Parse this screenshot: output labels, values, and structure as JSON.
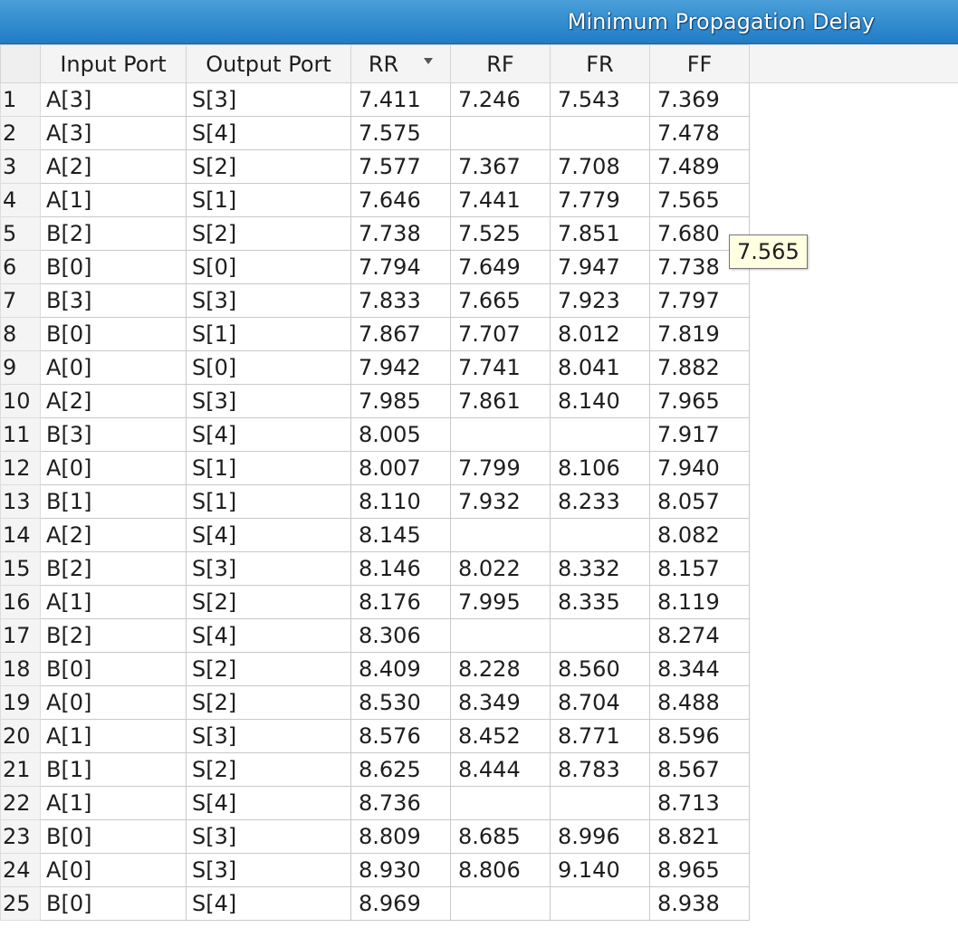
{
  "window": {
    "title": "Minimum Propagation Delay"
  },
  "table": {
    "columns": [
      "",
      "Input Port",
      "Output Port",
      "RR",
      "RF",
      "FR",
      "FF"
    ],
    "sorted_column": "RR",
    "rows": [
      [
        "1",
        "A[3]",
        "S[3]",
        "7.411",
        "7.246",
        "7.543",
        "7.369"
      ],
      [
        "2",
        "A[3]",
        "S[4]",
        "7.575",
        "",
        "",
        "7.478"
      ],
      [
        "3",
        "A[2]",
        "S[2]",
        "7.577",
        "7.367",
        "7.708",
        "7.489"
      ],
      [
        "4",
        "A[1]",
        "S[1]",
        "7.646",
        "7.441",
        "7.779",
        "7.565"
      ],
      [
        "5",
        "B[2]",
        "S[2]",
        "7.738",
        "7.525",
        "7.851",
        "7.680"
      ],
      [
        "6",
        "B[0]",
        "S[0]",
        "7.794",
        "7.649",
        "7.947",
        "7.738"
      ],
      [
        "7",
        "B[3]",
        "S[3]",
        "7.833",
        "7.665",
        "7.923",
        "7.797"
      ],
      [
        "8",
        "B[0]",
        "S[1]",
        "7.867",
        "7.707",
        "8.012",
        "7.819"
      ],
      [
        "9",
        "A[0]",
        "S[0]",
        "7.942",
        "7.741",
        "8.041",
        "7.882"
      ],
      [
        "10",
        "A[2]",
        "S[3]",
        "7.985",
        "7.861",
        "8.140",
        "7.965"
      ],
      [
        "11",
        "B[3]",
        "S[4]",
        "8.005",
        "",
        "",
        "7.917"
      ],
      [
        "12",
        "A[0]",
        "S[1]",
        "8.007",
        "7.799",
        "8.106",
        "7.940"
      ],
      [
        "13",
        "B[1]",
        "S[1]",
        "8.110",
        "7.932",
        "8.233",
        "8.057"
      ],
      [
        "14",
        "A[2]",
        "S[4]",
        "8.145",
        "",
        "",
        "8.082"
      ],
      [
        "15",
        "B[2]",
        "S[3]",
        "8.146",
        "8.022",
        "8.332",
        "8.157"
      ],
      [
        "16",
        "A[1]",
        "S[2]",
        "8.176",
        "7.995",
        "8.335",
        "8.119"
      ],
      [
        "17",
        "B[2]",
        "S[4]",
        "8.306",
        "",
        "",
        "8.274"
      ],
      [
        "18",
        "B[0]",
        "S[2]",
        "8.409",
        "8.228",
        "8.560",
        "8.344"
      ],
      [
        "19",
        "A[0]",
        "S[2]",
        "8.530",
        "8.349",
        "8.704",
        "8.488"
      ],
      [
        "20",
        "A[1]",
        "S[3]",
        "8.576",
        "8.452",
        "8.771",
        "8.596"
      ],
      [
        "21",
        "B[1]",
        "S[2]",
        "8.625",
        "8.444",
        "8.783",
        "8.567"
      ],
      [
        "22",
        "A[1]",
        "S[4]",
        "8.736",
        "",
        "",
        "8.713"
      ],
      [
        "23",
        "B[0]",
        "S[3]",
        "8.809",
        "8.685",
        "8.996",
        "8.821"
      ],
      [
        "24",
        "A[0]",
        "S[3]",
        "8.930",
        "8.806",
        "9.140",
        "8.965"
      ],
      [
        "25",
        "B[0]",
        "S[4]",
        "8.969",
        "",
        "",
        "8.938"
      ]
    ]
  },
  "tooltip": {
    "text": "7.565"
  },
  "colors": {
    "title_bar": "#1f7cc6",
    "tooltip_bg": "#ffffe1",
    "header_bg": "#f4f4f4"
  }
}
